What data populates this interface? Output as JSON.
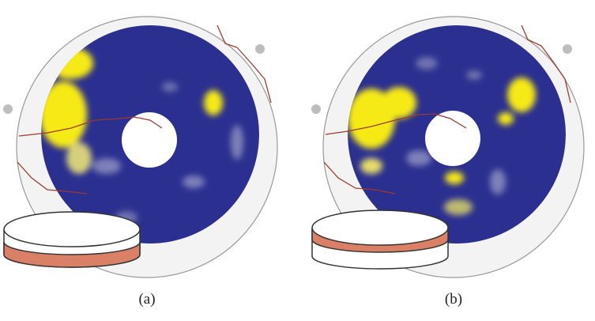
{
  "panels": [
    {
      "id": "a",
      "label": "(a)"
    },
    {
      "id": "b",
      "label": "(b)"
    }
  ],
  "colors": {
    "background": "#ffffff",
    "outer_disk_fill": "#f3f3f3",
    "outer_disk_stroke": "#999999",
    "map_blue": "#2b2f8f",
    "highlight_yellow": "#f6ea14",
    "crack_brown": "#9b3b2c",
    "sensor_gray": "#bdbdbd",
    "cylinder_band": "#d98066",
    "cylinder_stroke": "#333333"
  },
  "icons": [
    "sensor-dot",
    "cylinder-model-icon"
  ]
}
